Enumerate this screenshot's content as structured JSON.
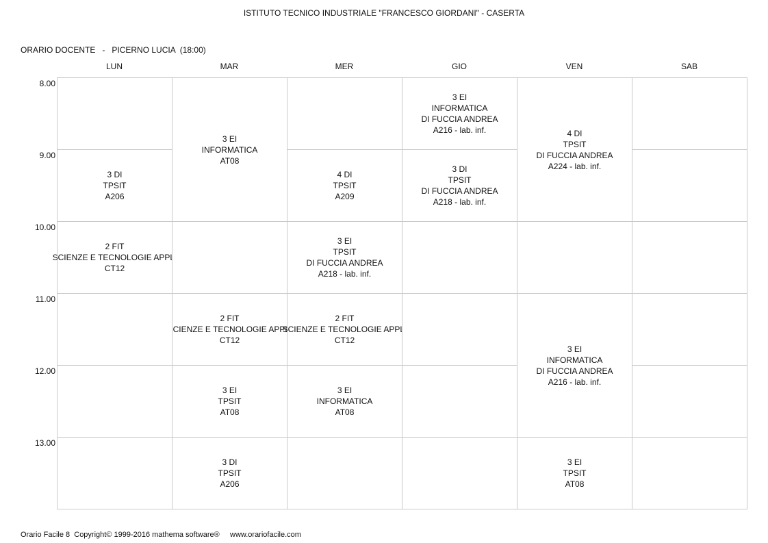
{
  "header": {
    "school": "ISTITUTO TECNICO INDUSTRIALE \"FRANCESCO GIORDANI\" - CASERTA",
    "teacher_label": "ORARIO DOCENTE",
    "separator": "-",
    "teacher_name": "PICERNO LUCIA",
    "hours_total": "(18:00)"
  },
  "days": [
    "LUN",
    "MAR",
    "MER",
    "GIO",
    "VEN",
    "SAB"
  ],
  "hours": [
    "8.00",
    "9.00",
    "10.00",
    "11.00",
    "12.00",
    "13.00"
  ],
  "lessons": [
    {
      "day": 0,
      "start": 1,
      "span": 1,
      "lines": [
        "3 DI",
        "TPSIT",
        "A206"
      ]
    },
    {
      "day": 0,
      "start": 2,
      "span": 1,
      "lines": [
        "2 FIT",
        "SCIENZE E TECNOLOGIE APPLI",
        "CT12"
      ]
    },
    {
      "day": 1,
      "start": 0,
      "span": 2,
      "lines": [
        "3 EI",
        "INFORMATICA",
        "AT08"
      ]
    },
    {
      "day": 1,
      "start": 3,
      "span": 1,
      "lines": [
        "2 FIT",
        "SCIENZE E TECNOLOGIE APPLI",
        "CT12"
      ]
    },
    {
      "day": 1,
      "start": 4,
      "span": 1,
      "lines": [
        "3 EI",
        "TPSIT",
        "AT08"
      ]
    },
    {
      "day": 1,
      "start": 5,
      "span": 1,
      "lines": [
        "3 DI",
        "TPSIT",
        "A206"
      ]
    },
    {
      "day": 2,
      "start": 1,
      "span": 1,
      "lines": [
        "4 DI",
        "TPSIT",
        "A209"
      ]
    },
    {
      "day": 2,
      "start": 2,
      "span": 1,
      "lines": [
        "3 EI",
        "TPSIT",
        "DI FUCCIA ANDREA",
        "A218 - lab. inf."
      ]
    },
    {
      "day": 2,
      "start": 3,
      "span": 1,
      "lines": [
        "2 FIT",
        "SCIENZE E TECNOLOGIE APPLI",
        "CT12"
      ]
    },
    {
      "day": 2,
      "start": 4,
      "span": 1,
      "lines": [
        "3 EI",
        "INFORMATICA",
        "AT08"
      ]
    },
    {
      "day": 3,
      "start": 0,
      "span": 1,
      "lines": [
        "3 EI",
        "INFORMATICA",
        "DI FUCCIA ANDREA",
        "A216 - lab. inf."
      ]
    },
    {
      "day": 3,
      "start": 1,
      "span": 1,
      "lines": [
        "3 DI",
        "TPSIT",
        "DI FUCCIA ANDREA",
        "A218 - lab. inf."
      ]
    },
    {
      "day": 4,
      "start": 0,
      "span": 2,
      "lines": [
        "4 DI",
        "TPSIT",
        "DI FUCCIA ANDREA",
        "A224 - lab. inf."
      ]
    },
    {
      "day": 4,
      "start": 3,
      "span": 2,
      "lines": [
        "3 EI",
        "INFORMATICA",
        "DI FUCCIA ANDREA",
        "A216 - lab. inf."
      ]
    },
    {
      "day": 4,
      "start": 5,
      "span": 1,
      "lines": [
        "3 EI",
        "TPSIT",
        "AT08"
      ]
    }
  ],
  "footer": {
    "copyright": "Orario Facile 8  Copyright© 1999-2016 mathema software®",
    "website": "www.orariofacile.com"
  }
}
